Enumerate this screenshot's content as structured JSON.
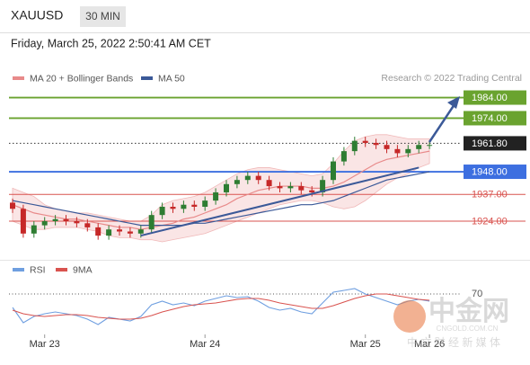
{
  "header": {
    "symbol": "XAUUSD",
    "interval": "30 MIN",
    "timestamp": "Friday, March 25, 2022 2:50:41 AM CET"
  },
  "source": "Research © 2022 Trading Central",
  "watermark": {
    "logo": "中金网",
    "url": "CNGOLD.COM.CN",
    "tagline": "中 文 财 经 新 媒 体"
  },
  "chart_data": [
    {
      "type": "candlestick",
      "categories": [
        null,
        null,
        null,
        "Mar 23",
        null,
        null,
        null,
        null,
        null,
        null,
        null,
        null,
        null,
        null,
        null,
        null,
        null,
        null,
        "Mar 24",
        null,
        null,
        null,
        null,
        null,
        null,
        null,
        null,
        null,
        null,
        null,
        null,
        null,
        null,
        "Mar 25",
        null,
        null,
        null,
        null,
        null,
        "Mar 26"
      ],
      "open": [
        1933,
        1930,
        1918,
        1922,
        1924,
        1925,
        1924,
        1923,
        1921,
        1917,
        1920,
        1919,
        1918,
        1920,
        1927,
        1931,
        1930,
        1932,
        1931,
        1934,
        1938,
        1942,
        1944,
        1946,
        1944,
        1941,
        1940,
        1941,
        1939,
        1938,
        1944,
        1953,
        1958,
        1963,
        1962,
        1961,
        1959,
        1957,
        1959,
        1961
      ],
      "high": [
        1935,
        1932,
        1924,
        1926,
        1927,
        1927,
        1926,
        1925,
        1923,
        1922,
        1922,
        1921,
        1922,
        1929,
        1933,
        1933,
        1934,
        1934,
        1936,
        1940,
        1944,
        1946,
        1948,
        1948,
        1946,
        1943,
        1943,
        1943,
        1941,
        1946,
        1955,
        1960,
        1965,
        1965,
        1964,
        1963,
        1961,
        1961,
        1963,
        1963
      ],
      "low": [
        1928,
        1916,
        1916,
        1920,
        1922,
        1922,
        1921,
        1919,
        1915,
        1915,
        1917,
        1916,
        1916,
        1918,
        1925,
        1928,
        1928,
        1929,
        1929,
        1932,
        1936,
        1940,
        1942,
        1942,
        1939,
        1938,
        1938,
        1937,
        1936,
        1936,
        1942,
        1951,
        1956,
        1960,
        1959,
        1957,
        1955,
        1955,
        1957,
        1959
      ],
      "close": [
        1930,
        1918,
        1922,
        1924,
        1925,
        1924,
        1923,
        1921,
        1917,
        1920,
        1919,
        1918,
        1920,
        1927,
        1931,
        1930,
        1932,
        1931,
        1934,
        1938,
        1942,
        1944,
        1946,
        1944,
        1941,
        1940,
        1941,
        1939,
        1938,
        1944,
        1953,
        1958,
        1963,
        1962,
        1961,
        1959,
        1957,
        1959,
        1961,
        1961
      ],
      "up_color": "#2e7d32",
      "down_color": "#c62828",
      "series": [
        {
          "name": "MA 20 + Bollinger Bands",
          "color": "#e88a8a",
          "values": [
            1932,
            1930,
            1928,
            1927,
            1926,
            1925,
            1925,
            1924,
            1923,
            1922,
            1921,
            1921,
            1920,
            1921,
            1922,
            1923,
            1925,
            1926,
            1928,
            1930,
            1932,
            1935,
            1937,
            1939,
            1940,
            1941,
            1941,
            1941,
            1940,
            1940,
            1941,
            1943,
            1946,
            1949,
            1952,
            1954,
            1955,
            1956,
            1957,
            1958
          ],
          "upper": [
            1940,
            1938,
            1936,
            1932,
            1930,
            1929,
            1928,
            1928,
            1927,
            1926,
            1925,
            1924,
            1924,
            1927,
            1932,
            1934,
            1935,
            1936,
            1938,
            1941,
            1944,
            1947,
            1949,
            1950,
            1950,
            1949,
            1948,
            1947,
            1946,
            1947,
            1952,
            1958,
            1963,
            1965,
            1966,
            1966,
            1965,
            1964,
            1964,
            1964
          ],
          "lower": [
            1924,
            1922,
            1920,
            1920,
            1921,
            1921,
            1921,
            1920,
            1919,
            1917,
            1916,
            1916,
            1915,
            1915,
            1914,
            1915,
            1916,
            1917,
            1918,
            1920,
            1922,
            1924,
            1926,
            1928,
            1930,
            1932,
            1933,
            1934,
            1934,
            1933,
            1931,
            1930,
            1931,
            1934,
            1938,
            1942,
            1945,
            1947,
            1950,
            1952
          ]
        },
        {
          "name": "MA 50",
          "color": "#3b5998",
          "values": [
            1934,
            1933,
            1932,
            1931,
            1930,
            1929,
            1928,
            1927,
            1926,
            1925,
            1924,
            1923,
            1922,
            1922,
            1922,
            1922,
            1922,
            1923,
            1923,
            1924,
            1925,
            1926,
            1927,
            1928,
            1929,
            1930,
            1931,
            1932,
            1932,
            1933,
            1934,
            1936,
            1938,
            1940,
            1942,
            1944,
            1945,
            1946,
            1947,
            1948
          ]
        }
      ],
      "trendline": {
        "x": [
          12,
          38
        ],
        "y": [
          1917,
          1950
        ],
        "color": "#3b5998"
      },
      "levels": [
        {
          "value": 1984,
          "label": "1984.00",
          "color": "#6aa32f",
          "boxed": true
        },
        {
          "value": 1974,
          "label": "1974.00",
          "color": "#6aa32f",
          "boxed": true
        },
        {
          "value": 1961.8,
          "label": "1961.80",
          "color": "#222222",
          "boxed": true,
          "dotted": true
        },
        {
          "value": 1948,
          "label": "1948.00",
          "color": "#3d6fe0",
          "boxed": true
        },
        {
          "value": 1937,
          "label": "1937.00",
          "color": "#d9534f",
          "boxed": false
        },
        {
          "value": 1924,
          "label": "1924.00",
          "color": "#d9534f",
          "boxed": false
        }
      ],
      "ylim": [
        1907,
        2003
      ]
    },
    {
      "type": "line",
      "series": [
        {
          "name": "RSI",
          "color": "#6f9fe0",
          "values": [
            55,
            38,
            45,
            48,
            50,
            48,
            46,
            42,
            36,
            44,
            42,
            40,
            45,
            58,
            62,
            58,
            60,
            57,
            62,
            65,
            68,
            66,
            67,
            62,
            55,
            52,
            54,
            50,
            48,
            60,
            72,
            74,
            76,
            70,
            66,
            62,
            58,
            62,
            64,
            62
          ]
        },
        {
          "name": "9MA",
          "color": "#d9534f",
          "values": [
            52,
            48,
            46,
            45,
            46,
            47,
            47,
            46,
            44,
            43,
            42,
            42,
            43,
            46,
            50,
            53,
            56,
            58,
            59,
            60,
            62,
            64,
            65,
            65,
            63,
            60,
            58,
            56,
            54,
            54,
            57,
            61,
            65,
            68,
            70,
            70,
            68,
            66,
            64,
            63
          ]
        }
      ],
      "ylim": [
        25,
        85
      ],
      "yticks": [
        70
      ]
    }
  ]
}
